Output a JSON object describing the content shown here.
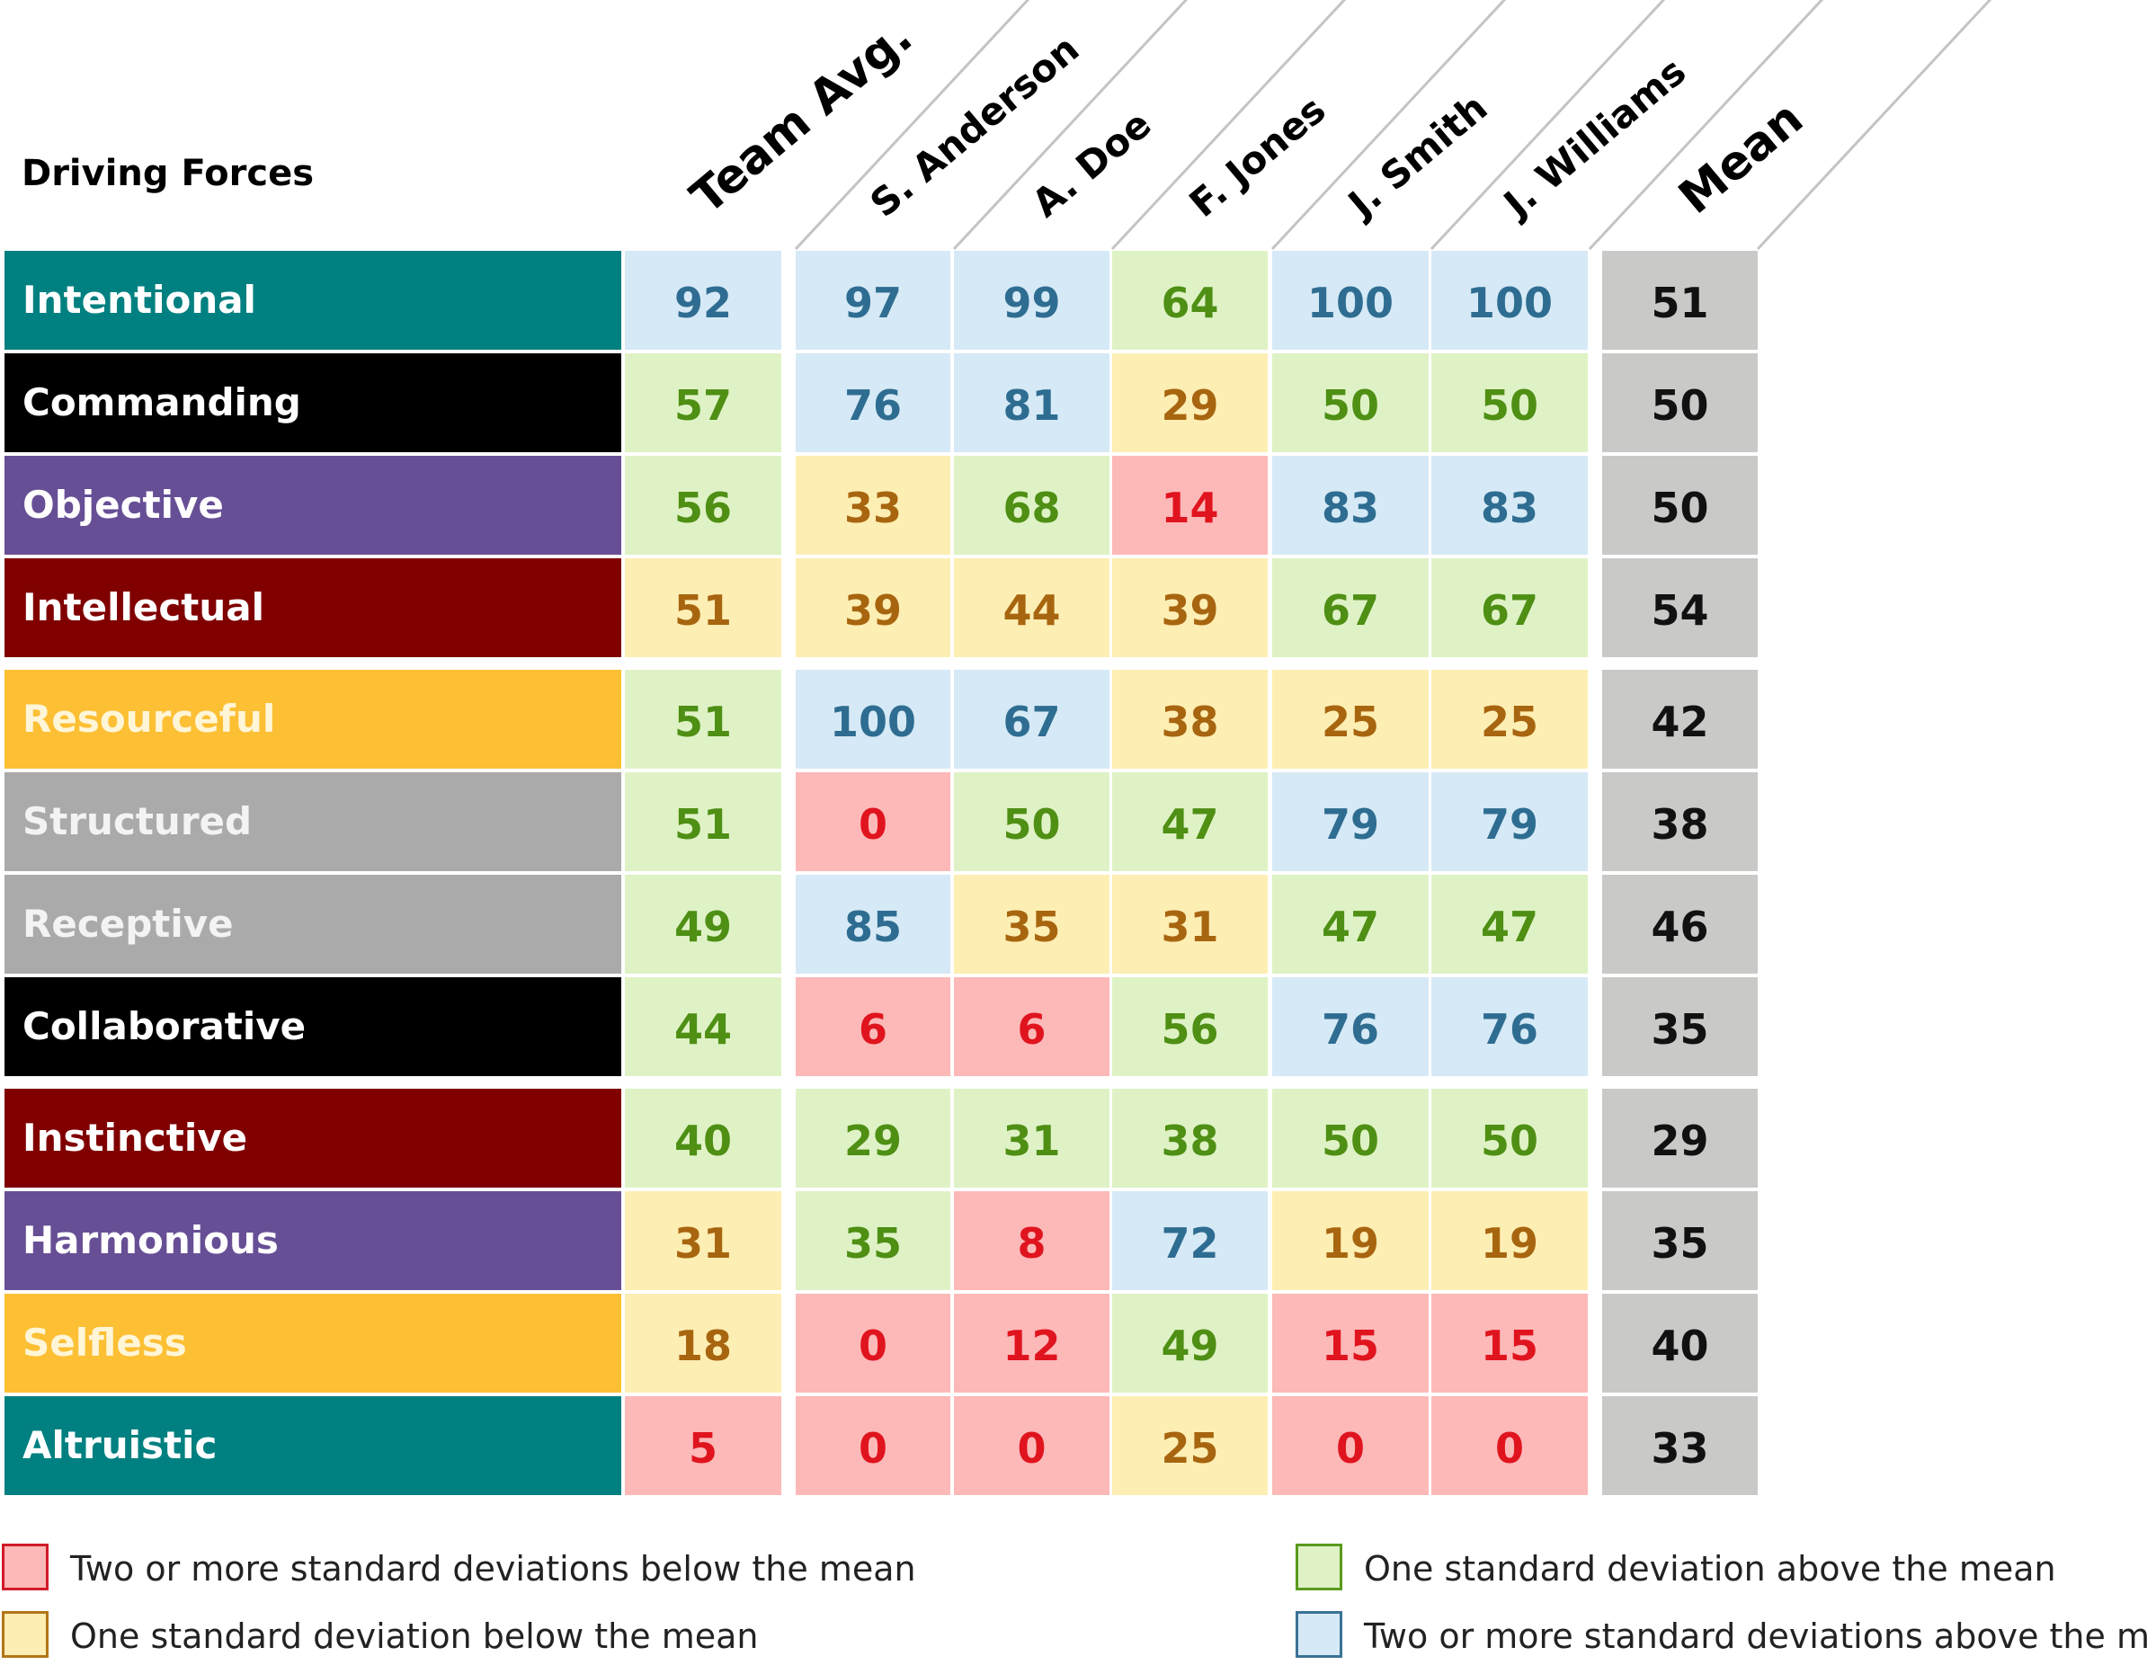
{
  "title": "Driving Forces",
  "columns": [
    "Team Avg.",
    "S. Anderson",
    "A. Doe",
    "F. Jones",
    "J. Smith",
    "J. Williams",
    "Mean"
  ],
  "level_colors": {
    "red": {
      "bg": "#fdb8b8",
      "fg": "#e0141e",
      "border": "#d11a2a"
    },
    "yellow": {
      "bg": "#fdeeb3",
      "fg": "#a8650f",
      "border": "#b27617"
    },
    "green": {
      "bg": "#dff2c6",
      "fg": "#4e8f14",
      "border": "#5a9a1e"
    },
    "blue": {
      "bg": "#d6e9f6",
      "fg": "#2e6d91",
      "border": "#3a7395"
    },
    "mean": {
      "bg": "#c9c9c7",
      "fg": "#111111"
    }
  },
  "chart_data": {
    "type": "table",
    "title": "Driving Forces",
    "columns": [
      "Team Avg.",
      "S. Anderson",
      "A. Doe",
      "F. Jones",
      "J. Smith",
      "J. Williams",
      "Mean"
    ],
    "groups": [
      {
        "rows": [
          {
            "label": "Intentional",
            "color": "#008080",
            "text_color": "#ffffff",
            "values": [
              92,
              97,
              99,
              64,
              100,
              100
            ],
            "levels": [
              "blue",
              "blue",
              "blue",
              "green",
              "blue",
              "blue"
            ],
            "mean": 51
          },
          {
            "label": "Commanding",
            "color": "#000000",
            "text_color": "#ffffff",
            "values": [
              57,
              76,
              81,
              29,
              50,
              50
            ],
            "levels": [
              "green",
              "blue",
              "blue",
              "yellow",
              "green",
              "green"
            ],
            "mean": 50
          },
          {
            "label": "Objective",
            "color": "#674f96",
            "text_color": "#ffffff",
            "values": [
              56,
              33,
              68,
              14,
              83,
              83
            ],
            "levels": [
              "green",
              "yellow",
              "green",
              "red",
              "blue",
              "blue"
            ],
            "mean": 50
          },
          {
            "label": "Intellectual",
            "color": "#800000",
            "text_color": "#ffffff",
            "values": [
              51,
              39,
              44,
              39,
              67,
              67
            ],
            "levels": [
              "yellow",
              "yellow",
              "yellow",
              "yellow",
              "green",
              "green"
            ],
            "mean": 54
          }
        ]
      },
      {
        "rows": [
          {
            "label": "Resourceful",
            "color": "#fdbf34",
            "text_color": "#fff6d8",
            "values": [
              51,
              100,
              67,
              38,
              25,
              25
            ],
            "levels": [
              "green",
              "blue",
              "blue",
              "yellow",
              "yellow",
              "yellow"
            ],
            "mean": 42
          },
          {
            "label": "Structured",
            "color": "#aaaaaa",
            "text_color": "#f3f3f3",
            "values": [
              51,
              0,
              50,
              47,
              79,
              79
            ],
            "levels": [
              "green",
              "red",
              "green",
              "green",
              "blue",
              "blue"
            ],
            "mean": 38
          },
          {
            "label": "Receptive",
            "color": "#aaaaaa",
            "text_color": "#f3f3f3",
            "values": [
              49,
              85,
              35,
              31,
              47,
              47
            ],
            "levels": [
              "green",
              "blue",
              "yellow",
              "yellow",
              "green",
              "green"
            ],
            "mean": 46
          },
          {
            "label": "Collaborative",
            "color": "#000000",
            "text_color": "#ffffff",
            "values": [
              44,
              6,
              6,
              56,
              76,
              76
            ],
            "levels": [
              "green",
              "red",
              "red",
              "green",
              "blue",
              "blue"
            ],
            "mean": 35
          }
        ]
      },
      {
        "rows": [
          {
            "label": "Instinctive",
            "color": "#800000",
            "text_color": "#ffffff",
            "values": [
              40,
              29,
              31,
              38,
              50,
              50
            ],
            "levels": [
              "green",
              "green",
              "green",
              "green",
              "green",
              "green"
            ],
            "mean": 29
          },
          {
            "label": "Harmonious",
            "color": "#674f96",
            "text_color": "#ffffff",
            "values": [
              31,
              35,
              8,
              72,
              19,
              19
            ],
            "levels": [
              "yellow",
              "green",
              "red",
              "blue",
              "yellow",
              "yellow"
            ],
            "mean": 35
          },
          {
            "label": "Selfless",
            "color": "#fdbf34",
            "text_color": "#fff6d8",
            "values": [
              18,
              0,
              12,
              49,
              15,
              15
            ],
            "levels": [
              "yellow",
              "red",
              "red",
              "green",
              "red",
              "red"
            ],
            "mean": 40
          },
          {
            "label": "Altruistic",
            "color": "#008080",
            "text_color": "#ffffff",
            "values": [
              5,
              0,
              0,
              25,
              0,
              0
            ],
            "levels": [
              "red",
              "red",
              "red",
              "yellow",
              "red",
              "red"
            ],
            "mean": 33
          }
        ]
      }
    ],
    "legend": [
      {
        "level": "red",
        "label": "Two or more standard deviations below the mean"
      },
      {
        "level": "yellow",
        "label": "One standard deviation below the mean"
      },
      {
        "level": "green",
        "label": "One standard deviation above the mean"
      },
      {
        "level": "blue",
        "label": "Two or more standard deviations above the mean"
      }
    ]
  }
}
